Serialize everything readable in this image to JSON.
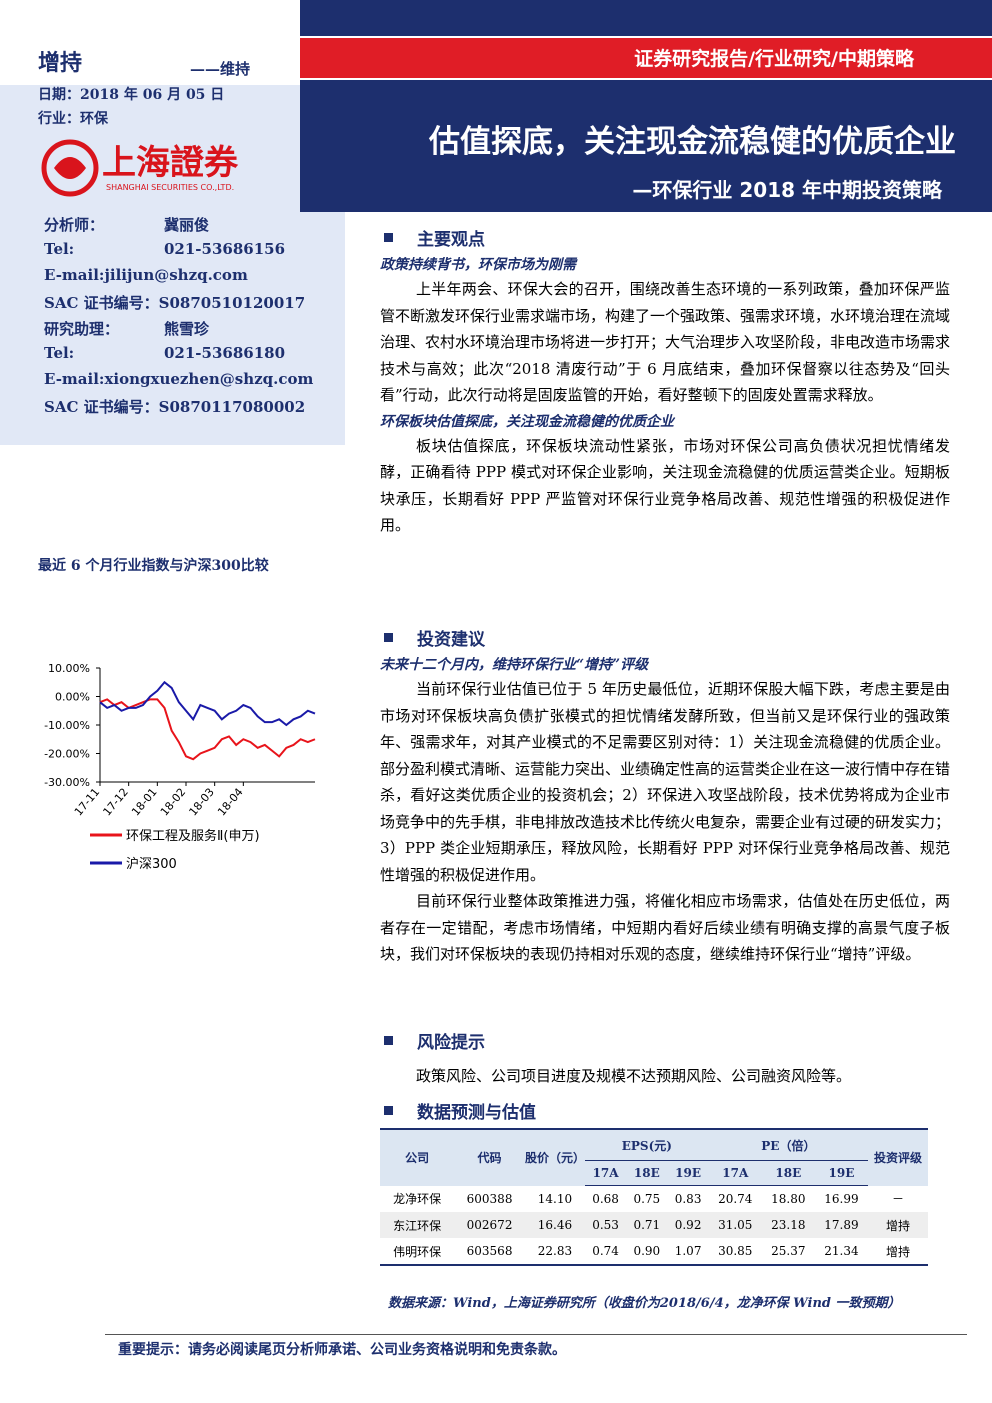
{
  "header": {
    "rating": "增持",
    "rating_prev": "——维持",
    "date": "日期：2018 年 06 月 05 日",
    "industry": "行业：环保",
    "logo_cn": "上海證券",
    "logo_en": "SHANGHAI SECURITIES CO.,LTD.",
    "report_type": "证券研究报告/行业研究/中期策略",
    "title": "估值探底，关注现金流稳健的优质企业",
    "subtitle": "—环保行业 2018 年中期投资策略"
  },
  "analysts": [
    {
      "label": "分析师：",
      "value": "冀丽俊"
    },
    {
      "label": "Tel:",
      "value": "021-53686156"
    },
    "E-mail:jilijun@shzq.com",
    "SAC 证书编号：S0870510120017",
    {
      "label": "研究助理：",
      "value": "熊雪珍"
    },
    {
      "label": "Tel:",
      "value": "021-53686180"
    },
    "E-mail:xiongxuezhen@shzq.com",
    "SAC 证书编号：S0870117080002"
  ],
  "chart_title": "最近 6 个月行业指数与沪深300比较",
  "chart_data": {
    "type": "line",
    "categories": [
      "17-11",
      null,
      null,
      null,
      "17-12",
      null,
      null,
      null,
      "18-01",
      null,
      null,
      null,
      "18-02",
      null,
      null,
      null,
      "18-03",
      null,
      null,
      null,
      "18-04",
      null,
      null,
      null,
      null,
      null,
      null,
      null,
      null,
      null,
      null
    ],
    "series": [
      {
        "name": "环保工程及服务Ⅱ(申万)",
        "color": "#e8141b",
        "values": [
          -2,
          -1,
          -3,
          -2,
          -4,
          -3,
          -2,
          -1,
          -1,
          -4,
          -12,
          -16,
          -21,
          -22,
          -20,
          -19,
          -18,
          -15,
          -14,
          -17,
          -15,
          -16,
          -18,
          -17,
          -19,
          -21,
          -18,
          -17,
          -15,
          -16,
          -15
        ]
      },
      {
        "name": "沪深300",
        "color": "#1a1aa8",
        "values": [
          -2,
          -4,
          -3,
          -5,
          -4,
          -4,
          -3,
          0,
          2,
          5,
          3,
          -2,
          -5,
          -8,
          -3,
          -4,
          -5,
          -8,
          -6,
          -5,
          -3,
          -4,
          -7,
          -9,
          -9,
          -8,
          -10,
          -8,
          -7,
          -5,
          -6
        ]
      }
    ],
    "ylim": [
      -30,
      10
    ],
    "yticks": [
      {
        "value": 10,
        "label": "10.00%"
      },
      {
        "value": 0,
        "label": "0.00%"
      },
      {
        "value": -10,
        "label": "-10.00%"
      },
      {
        "value": -20,
        "label": "-20.00%"
      },
      {
        "value": -30,
        "label": "-30.00%"
      }
    ],
    "grid": false
  },
  "sections": [
    {
      "heading": "主要观点",
      "subsections": [
        {
          "heading": "政策持续背书，环保市场为刚需",
          "paragraphs": [
            "上半年两会、环保大会的召开，围绕改善生态环境的一系列政策，叠加环保严监管不断激发环保行业需求端市场，构建了一个强政策、强需求环境，水环境治理在流域治理、农村水环境治理市场将进一步打开；大气治理步入攻坚阶段，非电改造市场需求技术与高效；此次“2018 清废行动”于 6 月底结束，叠加环保督察以往态势及“回头看”行动，此次行动将是固废监管的开始，看好整顿下的固废处置需求释放。"
          ]
        },
        {
          "heading": "环保板块估值探底，关注现金流稳健的优质企业",
          "paragraphs": [
            "板块估值探底，环保板块流动性紧张，市场对环保公司高负债状况担忧情绪发酵，正确看待 PPP 模式对环保企业影响，关注现金流稳健的优质运营类企业。短期板块承压，长期看好 PPP 严监管对环保行业竞争格局改善、规范性增强的积极促进作用。"
          ]
        }
      ]
    },
    {
      "heading": "投资建议",
      "subsections": [
        {
          "heading": "未来十二个月内，维持环保行业“增持”评级",
          "paragraphs": [
            "当前环保行业估值已位于 5 年历史最低位，近期环保股大幅下跌，考虑主要是由市场对环保板块高负债扩张模式的担忧情绪发酵所致，但当前又是环保行业的强政策年、强需求年，对其产业模式的不足需要区别对待：1）关注现金流稳健的优质企业。部分盈利模式清晰、运营能力突出、业绩确定性高的运营类企业在这一波行情中存在错杀，看好这类优质企业的投资机会；2）环保进入攻坚战阶段，技术优势将成为企业市场竞争中的先手棋，非电排放改造技术比传统火电复杂，需要企业有过硬的研发实力；3）PPP 类企业短期承压，释放风险，长期看好 PPP 对环保行业竞争格局改善、规范性增强的积极促进作用。",
            "目前环保行业整体政策推进力强，将催化相应市场需求，估值处在历史低位，两者存在一定错配，考虑市场情绪，中短期内看好后续业绩有明确支撑的高景气度子板块，我们对环保板块的表现仍持相对乐观的态度，继续维持环保行业“增持”评级。"
          ]
        }
      ]
    },
    {
      "heading": "风险提示",
      "subsections": [
        {
          "paragraphs": [
            "政策风险、公司项目进度及规模不达预期风险、公司融资风险等。"
          ]
        }
      ]
    },
    {
      "heading": "数据预测与估值"
    }
  ],
  "table": {
    "header": [
      "公司",
      "代码",
      "股价（元）",
      "EPS(元)",
      "PE（倍）",
      "投资评级"
    ],
    "subheader": [
      "17A",
      "18E",
      "19E",
      "17A",
      "18E",
      "19E"
    ],
    "rows": [
      [
        "龙净环保",
        "600388",
        "14.10",
        "0.68",
        "0.75",
        "0.83",
        "20.74",
        "18.80",
        "16.99",
        "－"
      ],
      [
        "东江环保",
        "002672",
        "16.46",
        "0.53",
        "0.71",
        "0.92",
        "31.05",
        "23.18",
        "17.89",
        "增持"
      ],
      [
        "伟明环保",
        "603568",
        "22.83",
        "0.74",
        "0.90",
        "1.07",
        "30.85",
        "25.37",
        "21.34",
        "增持"
      ]
    ]
  },
  "source": "数据来源：Wind，上海证券研究所（收盘价为2018/6/4，龙净环保 Wind 一致预期）",
  "footer": "重要提示：请务必阅读尾页分析师承诺、公司业务资格说明和免责条款。"
}
